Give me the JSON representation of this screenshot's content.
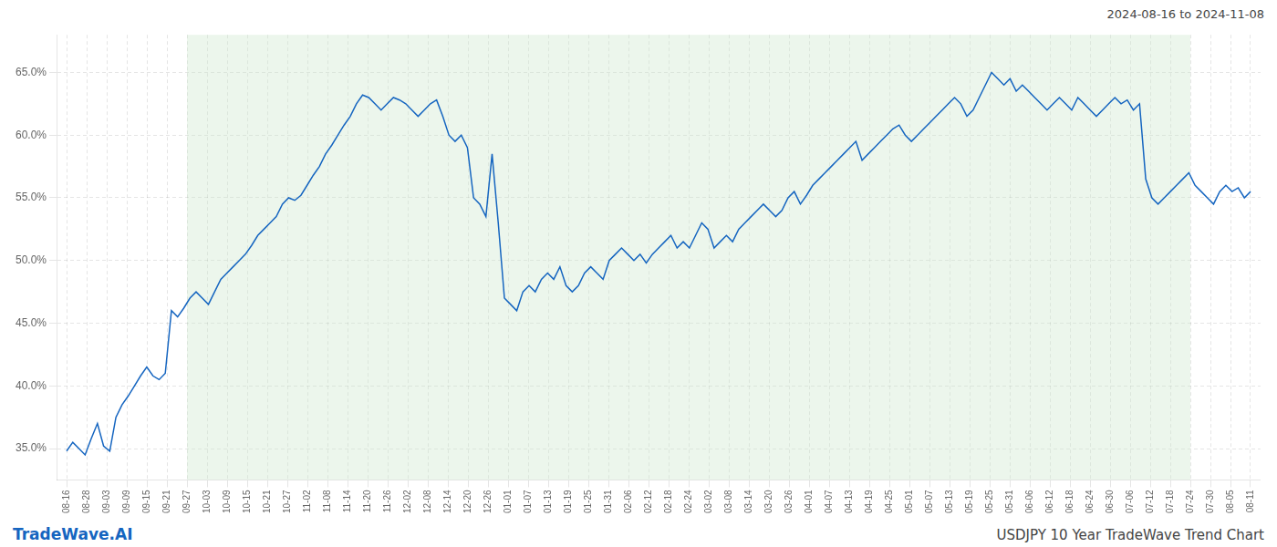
{
  "chart_data": {
    "type": "line",
    "title": "USDJPY 10 Year TradeWave Trend Chart",
    "subtitle": "2024-08-16 to 2024-11-08",
    "annotations": [
      "TradeWave.AI"
    ],
    "color": "#1565C0",
    "grid": true,
    "highlight": {
      "x_start": 6,
      "x_end": 56,
      "color": "#c8e6c9"
    },
    "xlim": [
      -0.5,
      59.5
    ],
    "xticks": [
      {
        "value": 0,
        "label": "08-16"
      },
      {
        "value": 1,
        "label": "08-28"
      },
      {
        "value": 2,
        "label": "09-03"
      },
      {
        "value": 3,
        "label": "09-09"
      },
      {
        "value": 4,
        "label": "09-15"
      },
      {
        "value": 5,
        "label": "09-21"
      },
      {
        "value": 6,
        "label": "09-27"
      },
      {
        "value": 7,
        "label": "10-03"
      },
      {
        "value": 8,
        "label": "10-09"
      },
      {
        "value": 9,
        "label": "10-15"
      },
      {
        "value": 10,
        "label": "10-21"
      },
      {
        "value": 11,
        "label": "10-27"
      },
      {
        "value": 12,
        "label": "11-02"
      },
      {
        "value": 13,
        "label": "11-08"
      },
      {
        "value": 14,
        "label": "11-14"
      },
      {
        "value": 15,
        "label": "11-20"
      },
      {
        "value": 16,
        "label": "11-26"
      },
      {
        "value": 17,
        "label": "12-02"
      },
      {
        "value": 18,
        "label": "12-08"
      },
      {
        "value": 19,
        "label": "12-14"
      },
      {
        "value": 20,
        "label": "12-20"
      },
      {
        "value": 21,
        "label": "12-26"
      },
      {
        "value": 22,
        "label": "01-01"
      },
      {
        "value": 23,
        "label": "01-07"
      },
      {
        "value": 24,
        "label": "01-13"
      },
      {
        "value": 25,
        "label": "01-19"
      },
      {
        "value": 26,
        "label": "01-25"
      },
      {
        "value": 27,
        "label": "01-31"
      },
      {
        "value": 28,
        "label": "02-06"
      },
      {
        "value": 29,
        "label": "02-12"
      },
      {
        "value": 30,
        "label": "02-18"
      },
      {
        "value": 31,
        "label": "02-24"
      },
      {
        "value": 32,
        "label": "03-02"
      },
      {
        "value": 33,
        "label": "03-08"
      },
      {
        "value": 34,
        "label": "03-14"
      },
      {
        "value": 35,
        "label": "03-20"
      },
      {
        "value": 36,
        "label": "03-26"
      },
      {
        "value": 37,
        "label": "04-01"
      },
      {
        "value": 38,
        "label": "04-07"
      },
      {
        "value": 39,
        "label": "04-13"
      },
      {
        "value": 40,
        "label": "04-19"
      },
      {
        "value": 41,
        "label": "04-25"
      },
      {
        "value": 42,
        "label": "05-01"
      },
      {
        "value": 43,
        "label": "05-07"
      },
      {
        "value": 44,
        "label": "05-13"
      },
      {
        "value": 45,
        "label": "05-19"
      },
      {
        "value": 46,
        "label": "05-25"
      },
      {
        "value": 47,
        "label": "05-31"
      },
      {
        "value": 48,
        "label": "06-06"
      },
      {
        "value": 49,
        "label": "06-12"
      },
      {
        "value": 50,
        "label": "06-18"
      },
      {
        "value": 51,
        "label": "06-24"
      },
      {
        "value": 52,
        "label": "06-30"
      },
      {
        "value": 53,
        "label": "07-06"
      },
      {
        "value": 54,
        "label": "07-12"
      },
      {
        "value": 55,
        "label": "07-18"
      },
      {
        "value": 56,
        "label": "07-24"
      },
      {
        "value": 57,
        "label": "07-30"
      },
      {
        "value": 58,
        "label": "08-05"
      },
      {
        "value": 59,
        "label": "08-11"
      }
    ],
    "ylim": [
      32.5,
      68.0
    ],
    "yticks": [
      {
        "value": 35.0,
        "label": "35.0%"
      },
      {
        "value": 40.0,
        "label": "40.0%"
      },
      {
        "value": 45.0,
        "label": "45.0%"
      },
      {
        "value": 50.0,
        "label": "50.0%"
      },
      {
        "value": 55.0,
        "label": "55.0%"
      },
      {
        "value": 60.0,
        "label": "60.0%"
      },
      {
        "value": 65.0,
        "label": "65.0%"
      }
    ],
    "x": [
      0,
      0.3073,
      0.6146,
      0.9219,
      1.2292,
      1.5365,
      1.8438,
      2.151,
      2.4583,
      2.7656,
      3.0729,
      3.3802,
      3.6875,
      3.9948,
      4.3021,
      4.6094,
      4.9167,
      5.224,
      5.5313,
      5.8385,
      6.1458,
      6.4531,
      6.7604,
      7.0677,
      7.375,
      7.6823,
      7.9896,
      8.2969,
      8.6042,
      8.9115,
      9.2188,
      9.526,
      9.8333,
      10.1406,
      10.4479,
      10.7552,
      11.0625,
      11.3698,
      11.6771,
      11.9844,
      12.2917,
      12.599,
      12.9063,
      13.2135,
      13.5208,
      13.8281,
      14.1354,
      14.4427,
      14.75,
      15.0573,
      15.3646,
      15.6719,
      15.9792,
      16.2865,
      16.5938,
      16.901,
      17.2083,
      17.5156,
      17.8229,
      18.1302,
      18.4375,
      18.7448,
      19.0521,
      19.3594,
      19.6667,
      19.974,
      20.2813,
      20.5885,
      20.8958,
      21.2031,
      21.5104,
      21.8177,
      22.125,
      22.4323,
      22.7396,
      23.0469,
      23.3542,
      23.6615,
      23.9688,
      24.276,
      24.5833,
      24.8906,
      25.1979,
      25.5052,
      25.8125,
      26.1198,
      26.4271,
      26.7344,
      27.0417,
      27.349,
      27.6563,
      27.9635,
      28.2708,
      28.5781,
      28.8854,
      29.1927,
      29.5,
      29.8073,
      30.1146,
      30.4219,
      30.7292,
      31.0365,
      31.3438,
      31.651,
      31.9583,
      32.2656,
      32.5729,
      32.8802,
      33.1875,
      33.4948,
      33.8021,
      34.1094,
      34.4167,
      34.724,
      35.0313,
      35.3385,
      35.6458,
      35.9531,
      36.2604,
      36.5677,
      36.875,
      37.1823,
      37.4896,
      37.7969,
      38.1042,
      38.4115,
      38.7188,
      39.026,
      39.3333,
      39.6406,
      39.9479,
      40.2552,
      40.5625,
      40.8698,
      41.1771,
      41.4844,
      41.7917,
      42.099,
      42.4063,
      42.7135,
      43.0208,
      43.3281,
      43.6354,
      43.9427,
      44.25,
      44.5573,
      44.8646,
      45.1719,
      45.4792,
      45.7865,
      46.0938,
      46.401,
      46.7083,
      47.0156,
      47.3229,
      47.6302,
      47.9375,
      48.2448,
      48.5521,
      48.8594,
      49.1667,
      49.474,
      49.7813,
      50.0885,
      50.3958,
      50.7031,
      51.0104,
      51.3177,
      51.625,
      51.9323,
      52.2396,
      52.5469,
      52.8542,
      53.1615,
      53.4688,
      53.776,
      54.0833,
      54.3906,
      54.6979,
      55.0052,
      55.3125,
      55.6198,
      55.9271,
      56.2344,
      56.5417,
      56.849,
      57.1563,
      57.4635,
      57.7708,
      58.0781,
      58.3854,
      58.6927,
      59
    ],
    "values": [
      34.8,
      35.5,
      35.0,
      34.5,
      35.8,
      37.0,
      35.2,
      34.8,
      37.5,
      38.5,
      39.2,
      40.0,
      40.8,
      41.5,
      40.8,
      40.5,
      41.0,
      46.0,
      45.5,
      46.2,
      47.0,
      47.5,
      47.0,
      46.5,
      47.5,
      48.5,
      49.0,
      49.5,
      50.0,
      50.5,
      51.2,
      52.0,
      52.5,
      53.0,
      53.5,
      54.5,
      55.0,
      54.8,
      55.2,
      56.0,
      56.8,
      57.5,
      58.5,
      59.2,
      60.0,
      60.8,
      61.5,
      62.5,
      63.2,
      63.0,
      62.5,
      62.0,
      62.5,
      63.0,
      62.8,
      62.5,
      62.0,
      61.5,
      62.0,
      62.5,
      62.8,
      61.5,
      60.0,
      59.5,
      60.0,
      59.0,
      55.0,
      54.5,
      53.5,
      58.5,
      53.0,
      47.0,
      46.5,
      46.0,
      47.5,
      48.0,
      47.5,
      48.5,
      49.0,
      48.5,
      49.5,
      48.0,
      47.5,
      48.0,
      49.0,
      49.5,
      49.0,
      48.5,
      50.0,
      50.5,
      51.0,
      50.5,
      50.0,
      50.5,
      49.8,
      50.5,
      51.0,
      51.5,
      52.0,
      51.0,
      51.5,
      51.0,
      52.0,
      53.0,
      52.5,
      51.0,
      51.5,
      52.0,
      51.5,
      52.5,
      53.0,
      53.5,
      54.0,
      54.5,
      54.0,
      53.5,
      54.0,
      55.0,
      55.5,
      54.5,
      55.2,
      56.0,
      56.5,
      57.0,
      57.5,
      58.0,
      58.5,
      59.0,
      59.5,
      58.0,
      58.5,
      59.0,
      59.5,
      60.0,
      60.5,
      60.8,
      60.0,
      59.5,
      60.0,
      60.5,
      61.0,
      61.5,
      62.0,
      62.5,
      63.0,
      62.5,
      61.5,
      62.0,
      63.0,
      64.0,
      65.0,
      64.5,
      64.0,
      64.5,
      63.5,
      64.0,
      63.5,
      63.0,
      62.5,
      62.0,
      62.5,
      63.0,
      62.5,
      62.0,
      63.0,
      62.5,
      62.0,
      61.5,
      62.0,
      62.5,
      63.0,
      62.5,
      62.8,
      62.0,
      62.5,
      56.5,
      55.0,
      54.5,
      55.0,
      55.5,
      56.0,
      56.5,
      57.0,
      56.0,
      55.5,
      55.0,
      54.5,
      55.5,
      56.0,
      55.5,
      55.8,
      55.0,
      55.5
    ]
  }
}
